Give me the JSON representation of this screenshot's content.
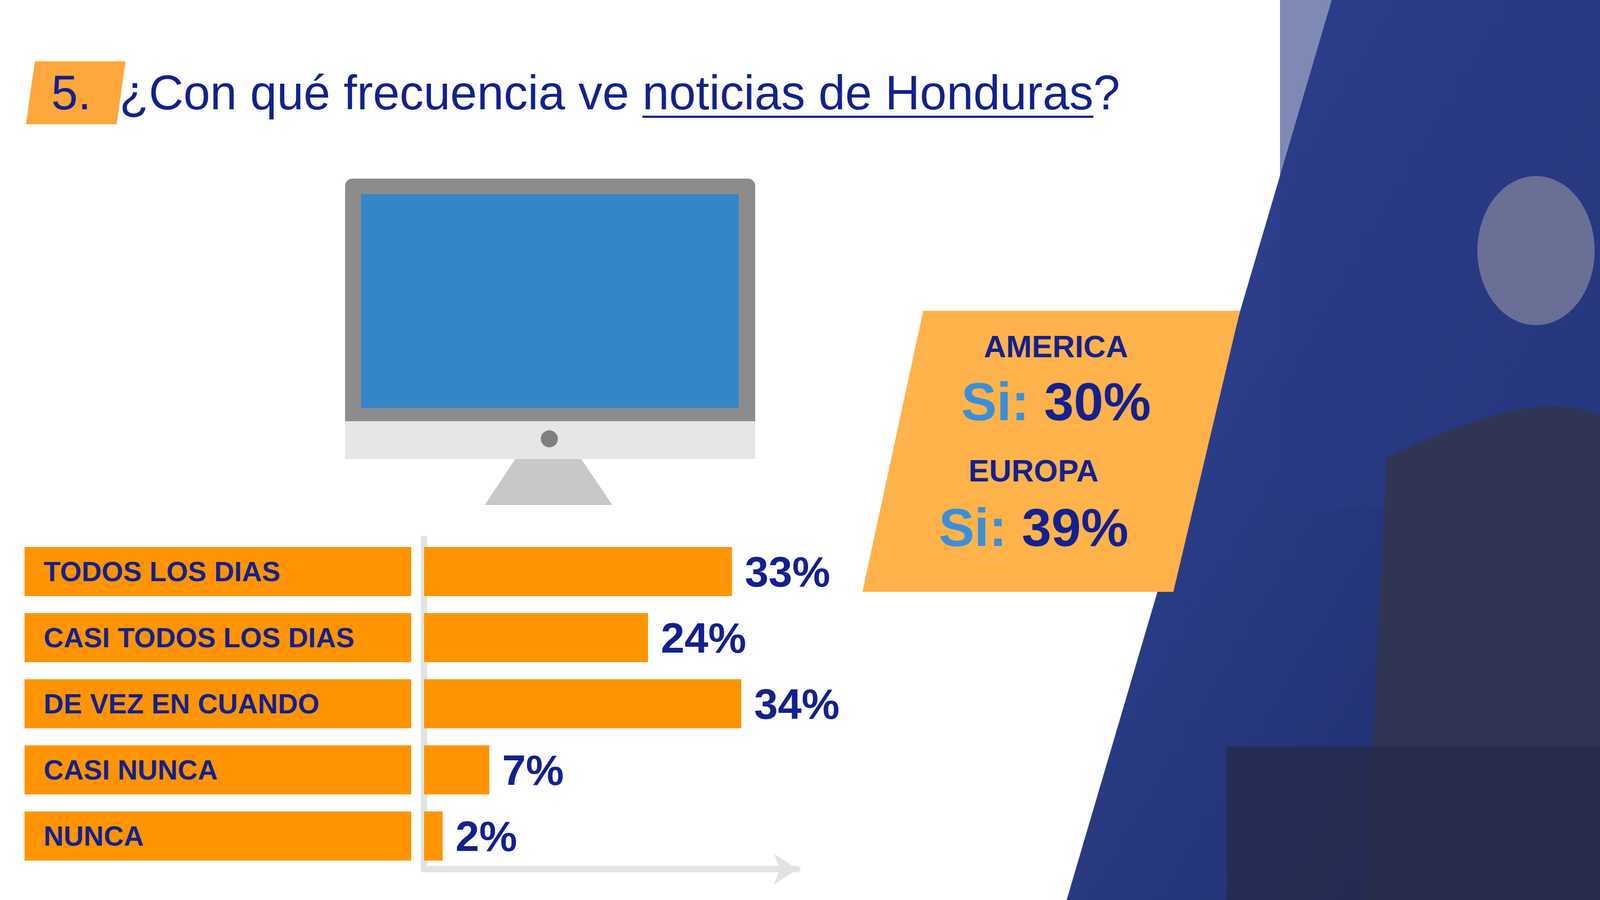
{
  "header": {
    "number": "5.",
    "title": "¿Con qué frecuencia ve noticias de Honduras?",
    "title_emphasis": "noticias de Honduras"
  },
  "chart_data": {
    "type": "bar",
    "orientation": "horizontal",
    "categories": [
      "TODOS LOS DIAS",
      "CASI TODOS LOS DIAS",
      "DE VEZ EN CUANDO",
      "CASI NUNCA",
      "NUNCA"
    ],
    "values": [
      33,
      24,
      34,
      7,
      2
    ],
    "value_labels": [
      "33%",
      "24%",
      "34%",
      "7%",
      "2%"
    ],
    "color": "#ff9400",
    "xlim": [
      0,
      40
    ],
    "data_labels": true,
    "tick_labels": "y",
    "grid": false
  },
  "annotations": [
    {
      "heading": "AMERICA",
      "answer": "Si:",
      "value_label": "30%"
    },
    {
      "heading": "EUROPA",
      "answer": "Si:",
      "value_label": "39%"
    }
  ]
}
